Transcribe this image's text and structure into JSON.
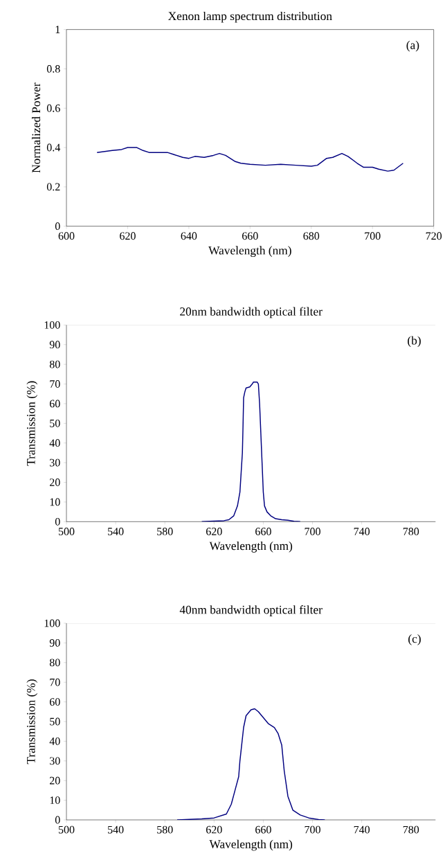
{
  "chart_data": [
    {
      "type": "line",
      "title": "Xenon lamp spectrum distribution",
      "xlabel": "Wavelength (nm)",
      "ylabel": "Normalized Power",
      "annotations": [
        "(a)"
      ],
      "xlim": [
        600,
        720
      ],
      "ylim": [
        0,
        1
      ],
      "xticks": [
        600,
        620,
        640,
        660,
        680,
        700,
        720
      ],
      "yticks": [
        0,
        0.2,
        0.4,
        0.6,
        0.8,
        1
      ],
      "marker": "none",
      "line_style": "solid",
      "series": [
        {
          "color": "#000080",
          "x": [
            610,
            615,
            618,
            620,
            623,
            625,
            627,
            633,
            635,
            638,
            640,
            642,
            645,
            648,
            650,
            652,
            655,
            657,
            660,
            665,
            670,
            675,
            680,
            682,
            685,
            687,
            690,
            692,
            695,
            697,
            700,
            702,
            705,
            707,
            710
          ],
          "values": [
            0.375,
            0.385,
            0.39,
            0.4,
            0.4,
            0.385,
            0.375,
            0.375,
            0.365,
            0.35,
            0.345,
            0.355,
            0.35,
            0.36,
            0.37,
            0.36,
            0.33,
            0.32,
            0.315,
            0.31,
            0.315,
            0.31,
            0.305,
            0.31,
            0.345,
            0.35,
            0.37,
            0.355,
            0.32,
            0.3,
            0.3,
            0.29,
            0.28,
            0.285,
            0.32
          ]
        }
      ]
    },
    {
      "type": "line",
      "title": "20nm bandwidth optical filter",
      "xlabel": "Wavelength (nm)",
      "ylabel": "Transmission (%)",
      "annotations": [
        "(b)"
      ],
      "xlim": [
        500,
        800
      ],
      "ylim": [
        0,
        100
      ],
      "xticks": [
        500,
        540,
        580,
        620,
        660,
        700,
        740,
        780
      ],
      "yticks": [
        0,
        10,
        20,
        30,
        40,
        50,
        60,
        70,
        80,
        90,
        100
      ],
      "marker": "none",
      "line_style": "solid",
      "series": [
        {
          "color": "#000080",
          "x": [
            610,
            620,
            628,
            632,
            636,
            639,
            641,
            642,
            643,
            643.5,
            644,
            645,
            646,
            649,
            651,
            652,
            655,
            656,
            657,
            658,
            659,
            660,
            661,
            663,
            666,
            670,
            675,
            680,
            685,
            690
          ],
          "values": [
            0,
            0.3,
            0.5,
            1,
            3,
            8,
            15,
            25,
            35,
            48,
            63,
            66,
            68,
            68.5,
            70,
            71,
            71,
            70,
            60,
            45,
            30,
            15,
            8,
            5,
            3,
            1.5,
            1,
            0.7,
            0.2,
            0
          ]
        }
      ]
    },
    {
      "type": "line",
      "title": "40nm bandwidth optical filter",
      "xlabel": "Wavelength (nm)",
      "ylabel": "Transmission (%)",
      "annotations": [
        "(c)"
      ],
      "xlim": [
        500,
        800
      ],
      "ylim": [
        0,
        100
      ],
      "xticks": [
        500,
        540,
        580,
        620,
        660,
        700,
        740,
        780
      ],
      "yticks": [
        0,
        10,
        20,
        30,
        40,
        50,
        60,
        70,
        80,
        90,
        100
      ],
      "marker": "none",
      "line_style": "solid",
      "series": [
        {
          "color": "#000080",
          "x": [
            590,
            610,
            620,
            630,
            634,
            637,
            640,
            641,
            644,
            646,
            650,
            653,
            656,
            660,
            664,
            669,
            672,
            675,
            677,
            680,
            684,
            690,
            697,
            705,
            710
          ],
          "values": [
            0,
            0.5,
            1,
            3,
            8,
            15,
            22,
            30,
            47,
            53,
            56,
            56.5,
            55,
            52,
            49,
            47,
            44,
            38,
            25,
            12,
            5,
            2.5,
            1,
            0.2,
            0
          ]
        }
      ]
    }
  ]
}
